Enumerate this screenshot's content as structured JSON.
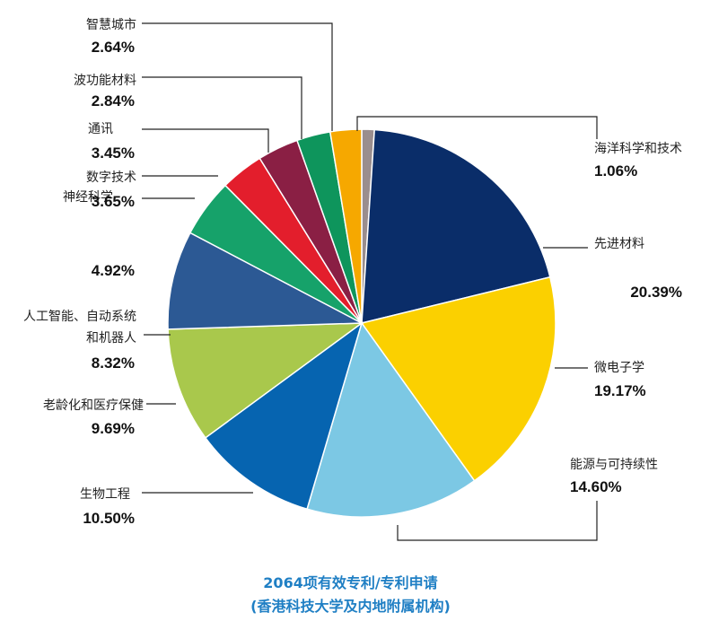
{
  "chart_data": {
    "type": "pie",
    "title": "2064项有效专利/专利申请",
    "subtitle": "(香港科技大学及内地附属机构)",
    "slices": [
      {
        "label": "海洋科学和技术",
        "value": 1.06,
        "value_label": "1.06%",
        "color": "#9a8e8e"
      },
      {
        "label": "先进材料",
        "value": 20.39,
        "value_label": "20.39%",
        "color": "#0a2d69"
      },
      {
        "label": "微电子学",
        "value": 19.17,
        "value_label": "19.17%",
        "color": "#fbd000"
      },
      {
        "label": "能源与可持续性",
        "value": 14.6,
        "value_label": "14.60%",
        "color": "#7cc8e4"
      },
      {
        "label": "生物工程",
        "value": 10.5,
        "value_label": "10.50%",
        "color": "#0664b0"
      },
      {
        "label": "老龄化和医疗保健",
        "value": 9.69,
        "value_label": "9.69%",
        "color": "#a9c84c"
      },
      {
        "label": "人工智能、自动系统和机器人",
        "value": 8.32,
        "value_label": "8.32%",
        "color": "#2c5994"
      },
      {
        "label": "神经科学",
        "value": 4.92,
        "value_label": "4.92%",
        "color": "#16a26a"
      },
      {
        "label": "数字技术",
        "value": 3.65,
        "value_label": "3.65%",
        "color": "#e31e2c"
      },
      {
        "label": "通讯",
        "value": 3.45,
        "value_label": "3.45%",
        "color": "#8a1f44"
      },
      {
        "label": "波功能材料",
        "value": 2.84,
        "value_label": "2.84%",
        "color": "#0e955c"
      },
      {
        "label": "智慧城市",
        "value": 2.64,
        "value_label": "2.64%",
        "color": "#f6a800"
      }
    ]
  }
}
